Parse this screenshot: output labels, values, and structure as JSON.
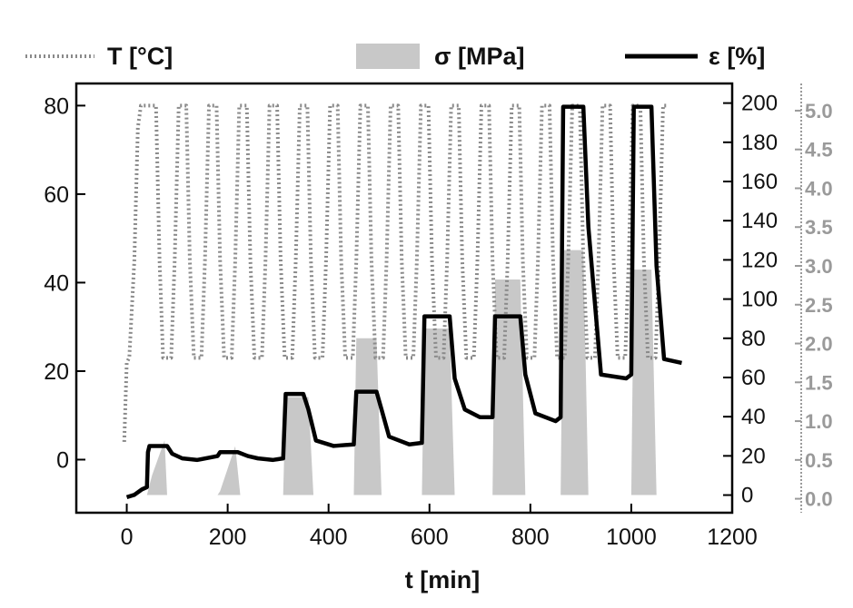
{
  "chart_data": {
    "type": "line",
    "xlabel": "t [min]",
    "xlim": [
      -100,
      1200
    ],
    "xticks": [
      0,
      200,
      400,
      600,
      800,
      1000,
      1200
    ],
    "axes": {
      "temperature": {
        "ylim": [
          -12,
          85
        ],
        "ticks": [
          0,
          20,
          40,
          60,
          80
        ]
      },
      "stress": {
        "ylim": [
          -9,
          210
        ],
        "ticks": [
          0,
          20,
          40,
          60,
          80,
          100,
          120,
          140,
          160,
          180,
          200
        ]
      },
      "strain": {
        "ylim": [
          -0.18,
          5.35
        ],
        "ticks": [
          "0.0",
          "0.5",
          "1.0",
          "1.5",
          "2.0",
          "2.5",
          "3.0",
          "3.5",
          "4.0",
          "4.5",
          "5.0"
        ]
      }
    },
    "legend": {
      "placement": "top",
      "entries": [
        {
          "label": "T [°C]",
          "style": "dotted",
          "color": "#8a8a8a"
        },
        {
          "label": "σ [MPa]",
          "style": "filled",
          "color": "#c8c8c8"
        },
        {
          "label": "ε [%]",
          "style": "solid",
          "color": "#000000"
        }
      ]
    },
    "series": [
      {
        "name": "T [°C]",
        "axis": "temperature",
        "color": "#8a8a8a",
        "x": [
          -5,
          0,
          5,
          15,
          22,
          28,
          30,
          40,
          50,
          58,
          65,
          72,
          80,
          88,
          95,
          103,
          110,
          118,
          125,
          133,
          140,
          148,
          155,
          163,
          170,
          178,
          185,
          193,
          200,
          208,
          215,
          223,
          230,
          238,
          245,
          253,
          260,
          268,
          275,
          283,
          290,
          298,
          305,
          313,
          320,
          328,
          335,
          343,
          350,
          358,
          365,
          373,
          380,
          388,
          395,
          403,
          410,
          418,
          425,
          433,
          440,
          448,
          455,
          463,
          470,
          478,
          485,
          493,
          500,
          508,
          515,
          523,
          530,
          538,
          545,
          553,
          560,
          568,
          575,
          583,
          590,
          598,
          605,
          613,
          620,
          628,
          635,
          643,
          650,
          658,
          665,
          673,
          680,
          688,
          695,
          703,
          710,
          718,
          725,
          733,
          740,
          748,
          755,
          763,
          770,
          778,
          785,
          793,
          800,
          808,
          815,
          823,
          830,
          838,
          845,
          853,
          860,
          868,
          875,
          883,
          890,
          898,
          905,
          913,
          920,
          928,
          935,
          943,
          950,
          958,
          965,
          973,
          980,
          988,
          995,
          1003,
          1010,
          1018,
          1025,
          1033,
          1040,
          1048,
          1055,
          1063,
          1070
        ],
        "y": [
          4,
          22,
          23,
          45,
          75,
          80,
          80,
          80,
          80,
          80,
          45,
          23,
          23,
          23,
          45,
          80,
          80,
          80,
          45,
          23,
          23,
          23,
          45,
          80,
          80,
          80,
          45,
          23,
          23,
          23,
          45,
          80,
          80,
          80,
          45,
          23,
          23,
          23,
          45,
          80,
          80,
          80,
          45,
          23,
          23,
          23,
          45,
          80,
          80,
          80,
          45,
          23,
          23,
          23,
          45,
          80,
          80,
          80,
          45,
          23,
          23,
          23,
          45,
          80,
          80,
          80,
          45,
          23,
          23,
          23,
          45,
          80,
          80,
          80,
          45,
          23,
          23,
          23,
          45,
          80,
          80,
          80,
          45,
          23,
          23,
          23,
          45,
          80,
          80,
          80,
          45,
          23,
          23,
          23,
          45,
          80,
          80,
          80,
          45,
          23,
          23,
          23,
          45,
          80,
          80,
          80,
          45,
          23,
          23,
          23,
          45,
          80,
          80,
          80,
          45,
          23,
          23,
          23,
          45,
          80,
          80,
          80,
          45,
          23,
          23,
          23,
          45,
          80,
          80,
          80,
          45,
          23,
          23,
          23,
          45,
          80,
          80,
          80,
          45,
          23,
          23,
          23,
          45,
          80,
          80
        ]
      },
      {
        "name": "σ [MPa]",
        "axis": "stress",
        "color": "#c8c8c8",
        "x": [
          0,
          40,
          50,
          75,
          80,
          90,
          180,
          185,
          215,
          225,
          310,
          315,
          360,
          370,
          450,
          455,
          495,
          505,
          585,
          590,
          640,
          650,
          725,
          730,
          780,
          790,
          860,
          865,
          905,
          915,
          1000,
          1005,
          1040,
          1050,
          1100
        ],
        "y": [
          0,
          0,
          10,
          28,
          0,
          0,
          0,
          2,
          25,
          0,
          0,
          50,
          50,
          0,
          0,
          80,
          80,
          0,
          0,
          85,
          85,
          0,
          0,
          110,
          110,
          0,
          0,
          125,
          125,
          0,
          0,
          115,
          115,
          0,
          0
        ]
      },
      {
        "name": "ε [%]",
        "axis": "strain",
        "color": "#000000",
        "x": [
          0,
          15,
          30,
          40,
          42,
          45,
          80,
          90,
          110,
          140,
          180,
          185,
          220,
          240,
          260,
          290,
          310,
          315,
          350,
          360,
          375,
          410,
          450,
          455,
          495,
          505,
          520,
          560,
          585,
          590,
          640,
          650,
          670,
          700,
          725,
          730,
          780,
          790,
          810,
          850,
          860,
          865,
          905,
          915,
          940,
          990,
          1000,
          1005,
          1040,
          1050,
          1065,
          1100
        ],
        "y": [
          0.02,
          0.05,
          0.12,
          0.15,
          0.6,
          0.68,
          0.68,
          0.58,
          0.52,
          0.5,
          0.55,
          0.6,
          0.6,
          0.55,
          0.52,
          0.5,
          0.52,
          1.35,
          1.35,
          1.15,
          0.75,
          0.68,
          0.7,
          1.38,
          1.38,
          1.15,
          0.8,
          0.7,
          0.72,
          2.35,
          2.35,
          1.55,
          1.15,
          1.05,
          1.05,
          2.35,
          2.35,
          1.6,
          1.1,
          1.0,
          1.05,
          5.05,
          5.05,
          3.5,
          1.6,
          1.55,
          1.6,
          5.05,
          5.05,
          3.0,
          1.8,
          1.75
        ]
      }
    ]
  }
}
